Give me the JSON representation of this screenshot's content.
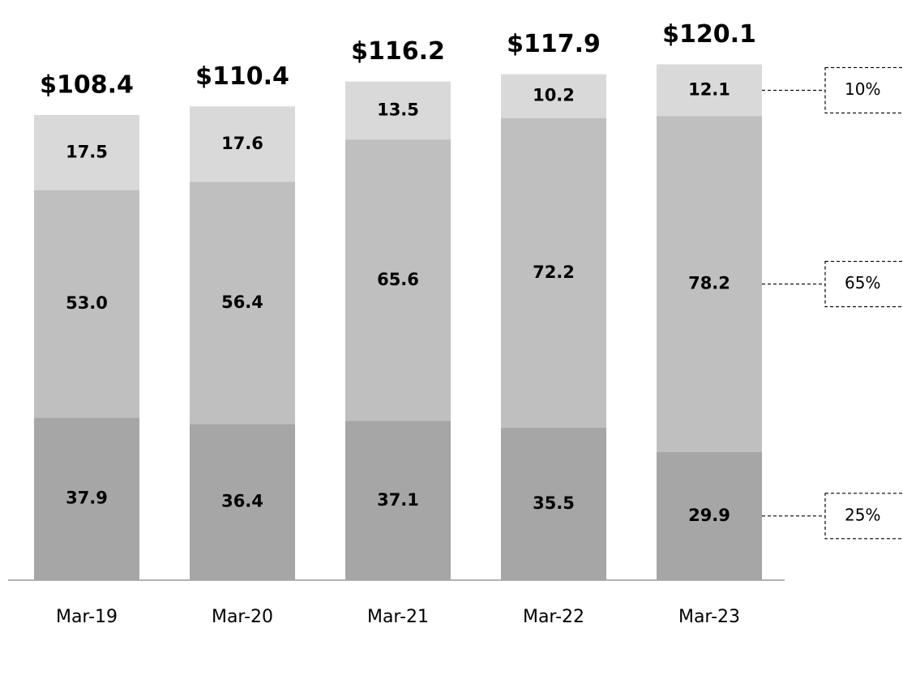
{
  "chart_data": {
    "type": "stacked_bar",
    "categories": [
      "Mar-19",
      "Mar-20",
      "Mar-21",
      "Mar-22",
      "Mar-23"
    ],
    "series": [
      {
        "color": "#a6a6a6",
        "values": [
          37.9,
          36.4,
          37.1,
          35.5,
          29.9
        ],
        "value_labels": [
          "37.9",
          "36.4",
          "37.1",
          "35.5",
          "29.9"
        ],
        "share_label": "25%"
      },
      {
        "color": "#bfbfbf",
        "values": [
          53.0,
          56.4,
          65.6,
          72.2,
          78.2
        ],
        "value_labels": [
          "53.0",
          "56.4",
          "65.6",
          "72.2",
          "78.2"
        ],
        "share_label": "65%"
      },
      {
        "color": "#d9d9d9",
        "values": [
          17.5,
          17.6,
          13.5,
          10.2,
          12.1
        ],
        "value_labels": [
          "17.5",
          "17.6",
          "13.5",
          "10.2",
          "12.1"
        ],
        "share_label": "10%"
      }
    ],
    "total_labels": [
      "$108.4",
      "$110.4",
      "$116.2",
      "$117.9",
      "$120.1"
    ],
    "ylim": [
      0,
      125
    ]
  }
}
